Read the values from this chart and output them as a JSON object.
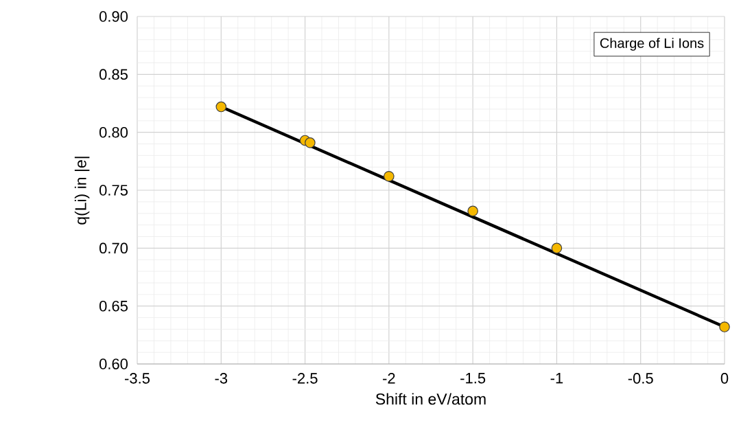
{
  "chart_data": {
    "type": "scatter",
    "xlabel": "Shift in eV/atom",
    "ylabel": "q(Li) in |e|",
    "annotations": [
      "Charge of Li Ions"
    ],
    "xlim": [
      -3.5,
      0
    ],
    "xticks": [
      -3.5,
      -3,
      -2.5,
      -2,
      -1.5,
      -1,
      -0.5,
      0
    ],
    "ylim": [
      0.6,
      0.9
    ],
    "yticks": [
      {
        "value": 0.6,
        "label": "0.60"
      },
      {
        "value": 0.65,
        "label": "0.65"
      },
      {
        "value": 0.7,
        "label": "0.70"
      },
      {
        "value": 0.75,
        "label": "0.75"
      },
      {
        "value": 0.8,
        "label": "0.80"
      },
      {
        "value": 0.85,
        "label": "0.85"
      },
      {
        "value": 0.9,
        "label": "0.90"
      }
    ],
    "grid": true,
    "series": [
      {
        "type": "line",
        "color": "#000000",
        "x": [
          -3,
          0
        ],
        "values": [
          0.822,
          0.632
        ],
        "line_style": "solid"
      },
      {
        "color": "#f5b800",
        "x": [
          -3,
          -2.5,
          -2.47,
          -2,
          -1.5,
          -1,
          0
        ],
        "values": [
          0.822,
          0.793,
          0.791,
          0.762,
          0.732,
          0.7,
          0.632
        ]
      }
    ]
  }
}
